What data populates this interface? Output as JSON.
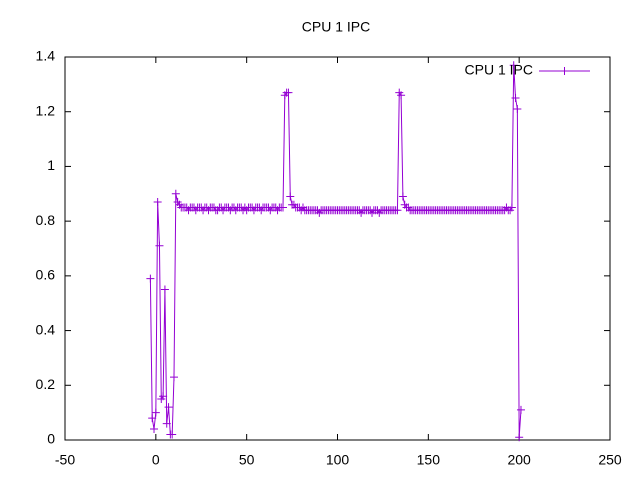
{
  "chart_data": {
    "type": "line",
    "title": "CPU 1 IPC",
    "x": [
      -3,
      -2,
      -1,
      0,
      1,
      2,
      3,
      4,
      5,
      6,
      7,
      8,
      9,
      10,
      11,
      12,
      13,
      14,
      15,
      16,
      17,
      18,
      19,
      20,
      21,
      22,
      23,
      24,
      25,
      26,
      27,
      28,
      29,
      30,
      31,
      32,
      33,
      34,
      35,
      36,
      37,
      38,
      39,
      40,
      41,
      42,
      43,
      44,
      45,
      46,
      47,
      48,
      49,
      50,
      51,
      52,
      53,
      54,
      55,
      56,
      57,
      58,
      59,
      60,
      61,
      62,
      63,
      64,
      65,
      66,
      67,
      68,
      69,
      70,
      71,
      72,
      73,
      74,
      75,
      76,
      77,
      78,
      79,
      80,
      81,
      82,
      83,
      84,
      85,
      86,
      87,
      88,
      89,
      90,
      91,
      92,
      93,
      94,
      95,
      96,
      97,
      98,
      99,
      100,
      101,
      102,
      103,
      104,
      105,
      106,
      107,
      108,
      109,
      110,
      111,
      112,
      113,
      114,
      115,
      116,
      117,
      118,
      119,
      120,
      121,
      122,
      123,
      124,
      125,
      126,
      127,
      128,
      129,
      130,
      131,
      132,
      133,
      134,
      135,
      136,
      137,
      138,
      139,
      140,
      141,
      142,
      143,
      144,
      145,
      146,
      147,
      148,
      149,
      150,
      151,
      152,
      153,
      154,
      155,
      156,
      157,
      158,
      159,
      160,
      161,
      162,
      163,
      164,
      165,
      166,
      167,
      168,
      169,
      170,
      171,
      172,
      173,
      174,
      175,
      176,
      177,
      178,
      179,
      180,
      181,
      182,
      183,
      184,
      185,
      186,
      187,
      188,
      189,
      190,
      191,
      192,
      193,
      194,
      195,
      196,
      197,
      198,
      199,
      200,
      201
    ],
    "series": [
      {
        "name": "CPU 1 IPC",
        "color": "#9400d3",
        "values": [
          0.59,
          0.08,
          0.04,
          0.1,
          0.87,
          0.71,
          0.15,
          0.16,
          0.55,
          0.06,
          0.12,
          0.02,
          0.02,
          0.23,
          0.9,
          0.87,
          0.86,
          0.85,
          0.85,
          0.85,
          0.85,
          0.84,
          0.85,
          0.85,
          0.85,
          0.84,
          0.85,
          0.85,
          0.85,
          0.84,
          0.85,
          0.85,
          0.84,
          0.85,
          0.85,
          0.85,
          0.84,
          0.84,
          0.85,
          0.85,
          0.84,
          0.85,
          0.85,
          0.85,
          0.84,
          0.85,
          0.85,
          0.84,
          0.85,
          0.85,
          0.85,
          0.84,
          0.85,
          0.84,
          0.85,
          0.85,
          0.85,
          0.84,
          0.85,
          0.85,
          0.85,
          0.84,
          0.85,
          0.85,
          0.85,
          0.85,
          0.84,
          0.85,
          0.85,
          0.85,
          0.84,
          0.85,
          0.85,
          0.85,
          1.26,
          1.27,
          1.27,
          0.89,
          0.86,
          0.86,
          0.85,
          0.85,
          0.85,
          0.84,
          0.85,
          0.84,
          0.84,
          0.84,
          0.84,
          0.84,
          0.84,
          0.84,
          0.84,
          0.83,
          0.84,
          0.84,
          0.84,
          0.84,
          0.84,
          0.84,
          0.84,
          0.84,
          0.84,
          0.84,
          0.84,
          0.84,
          0.84,
          0.84,
          0.84,
          0.84,
          0.84,
          0.84,
          0.84,
          0.84,
          0.84,
          0.84,
          0.83,
          0.84,
          0.84,
          0.84,
          0.84,
          0.84,
          0.83,
          0.84,
          0.84,
          0.84,
          0.83,
          0.84,
          0.84,
          0.84,
          0.84,
          0.84,
          0.84,
          0.84,
          0.84,
          0.84,
          0.84,
          1.27,
          1.26,
          0.89,
          0.86,
          0.85,
          0.85,
          0.84,
          0.84,
          0.84,
          0.84,
          0.84,
          0.84,
          0.84,
          0.84,
          0.84,
          0.84,
          0.84,
          0.84,
          0.84,
          0.84,
          0.84,
          0.84,
          0.84,
          0.84,
          0.84,
          0.84,
          0.84,
          0.84,
          0.84,
          0.84,
          0.84,
          0.84,
          0.84,
          0.84,
          0.84,
          0.84,
          0.84,
          0.84,
          0.84,
          0.84,
          0.84,
          0.84,
          0.84,
          0.84,
          0.84,
          0.84,
          0.84,
          0.84,
          0.84,
          0.84,
          0.84,
          0.84,
          0.84,
          0.84,
          0.84,
          0.84,
          0.84,
          0.84,
          0.84,
          0.85,
          0.84,
          0.84,
          0.85,
          1.37,
          1.25,
          1.21,
          0.01,
          0.11
        ]
      }
    ],
    "xlim": [
      -50,
      250
    ],
    "xticks": [
      -50,
      0,
      50,
      100,
      150,
      200,
      250
    ],
    "ylim": [
      0,
      1.4
    ],
    "yticks": [
      0,
      0.2,
      0.4,
      0.6,
      0.8,
      1,
      1.2,
      1.4
    ],
    "legend": "top-right",
    "grid": false
  }
}
